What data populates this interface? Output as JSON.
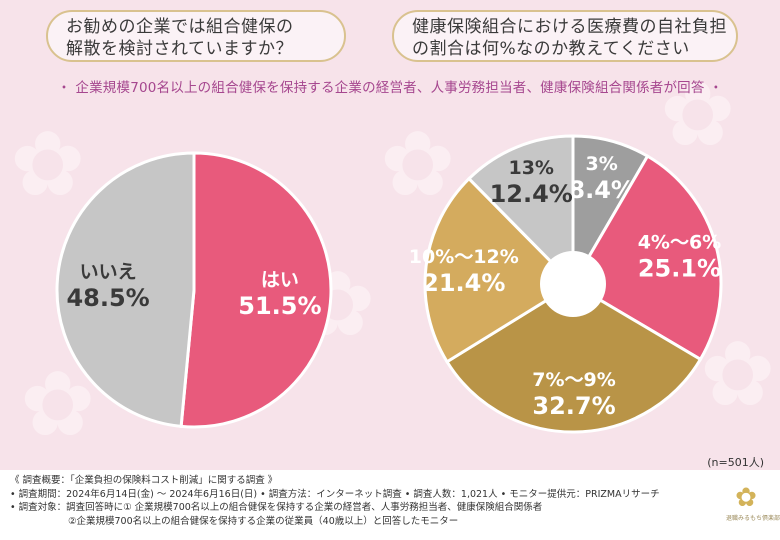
{
  "questions": {
    "q1_line1": "お勧めの企業では組合健保の",
    "q1_line2": "解散を検討されていますか？",
    "q2_line1": "健康保険組合における医療費の自社負担",
    "q2_line2": "の割合は何%なのか教えてください"
  },
  "subtitle": "・ 企業規模700名以上の組合健保を保持する企業の経営者、人事労務担当者、健康保険組合関係者が回答 ・",
  "sample_size": "(n=501人)",
  "chart_data": [
    {
      "type": "pie",
      "categories": [
        "はい",
        "いいえ"
      ],
      "values": [
        51.5,
        48.5
      ],
      "labels": [
        "51.5%",
        "48.5%"
      ],
      "colors": [
        "#e85a7c",
        "#c6c6c6"
      ]
    },
    {
      "type": "pie",
      "categories": [
        "3%",
        "4%〜6%",
        "7%〜9%",
        "10%〜12%",
        "13%"
      ],
      "values": [
        8.4,
        25.1,
        32.7,
        21.4,
        12.4
      ],
      "labels": [
        "8.4%",
        "25.1%",
        "32.7%",
        "21.4%",
        "12.4%"
      ],
      "colors": [
        "#9e9e9e",
        "#e85a7c",
        "#b99447",
        "#d4ab5e",
        "#c6c6c6"
      ]
    }
  ],
  "footer": {
    "line1": "《 調査概要：「企業負担の保険料コスト削減」に関する調査 》",
    "line2": "• 調査期間：2024年6月14日(金) 〜 2024年6月16日(日) • 調査方法：インターネット調査 • 調査人数：1,021人 • モニター提供元：PRIZMAリサーチ",
    "line3": "• 調査対象：調査回答時に① 企業規模700名以上の組合健保を保持する企業の経営者、人事労務担当者、健康保険組合関係者",
    "line4": "②企業規模700名以上の組合健保を保持する企業の従業員（40歳以上）と回答したモニター"
  },
  "logo": {
    "mark": "✿",
    "text": "退職みるもち倶楽部"
  }
}
